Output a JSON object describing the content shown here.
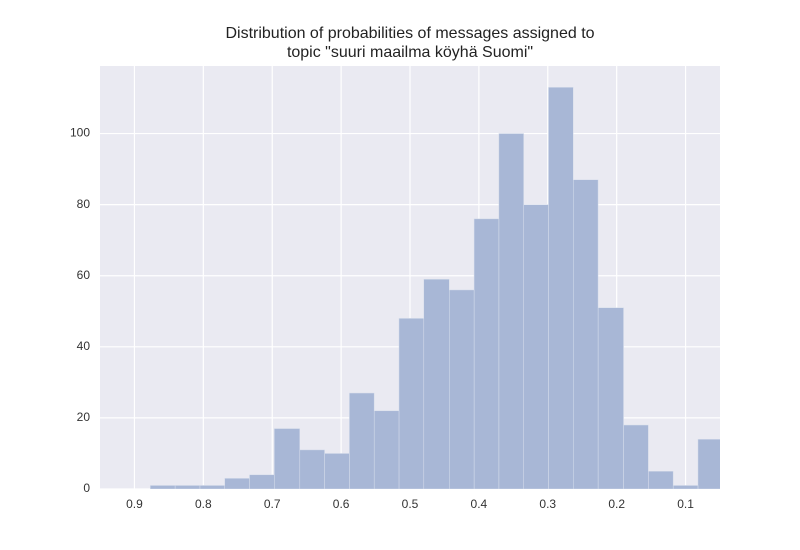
{
  "chart_data": {
    "type": "histogram",
    "title": "Distribution of probabilities of messages assigned to topic \"suuri maailma köyhä Suomi\"",
    "bins": [
      0.046,
      0.082,
      0.118,
      0.154,
      0.19,
      0.227,
      0.263,
      0.299,
      0.335,
      0.371,
      0.407,
      0.443,
      0.48,
      0.516,
      0.552,
      0.588,
      0.624,
      0.66,
      0.697,
      0.733,
      0.769,
      0.805,
      0.841,
      0.877
    ],
    "values": [
      14,
      1,
      5,
      18,
      51,
      87,
      113,
      80,
      100,
      76,
      56,
      59,
      48,
      22,
      27,
      10,
      11,
      17,
      4,
      3,
      1,
      1,
      1
    ],
    "color": "#a8b7d6",
    "xlim": [
      0.95,
      0.05
    ],
    "xticks": [
      0.9,
      0.8,
      0.7,
      0.6,
      0.5,
      0.4,
      0.3,
      0.2,
      0.1
    ],
    "ylim": [
      0,
      119
    ],
    "yticks": [
      0,
      20,
      40,
      60,
      80,
      100
    ],
    "grid": true
  }
}
